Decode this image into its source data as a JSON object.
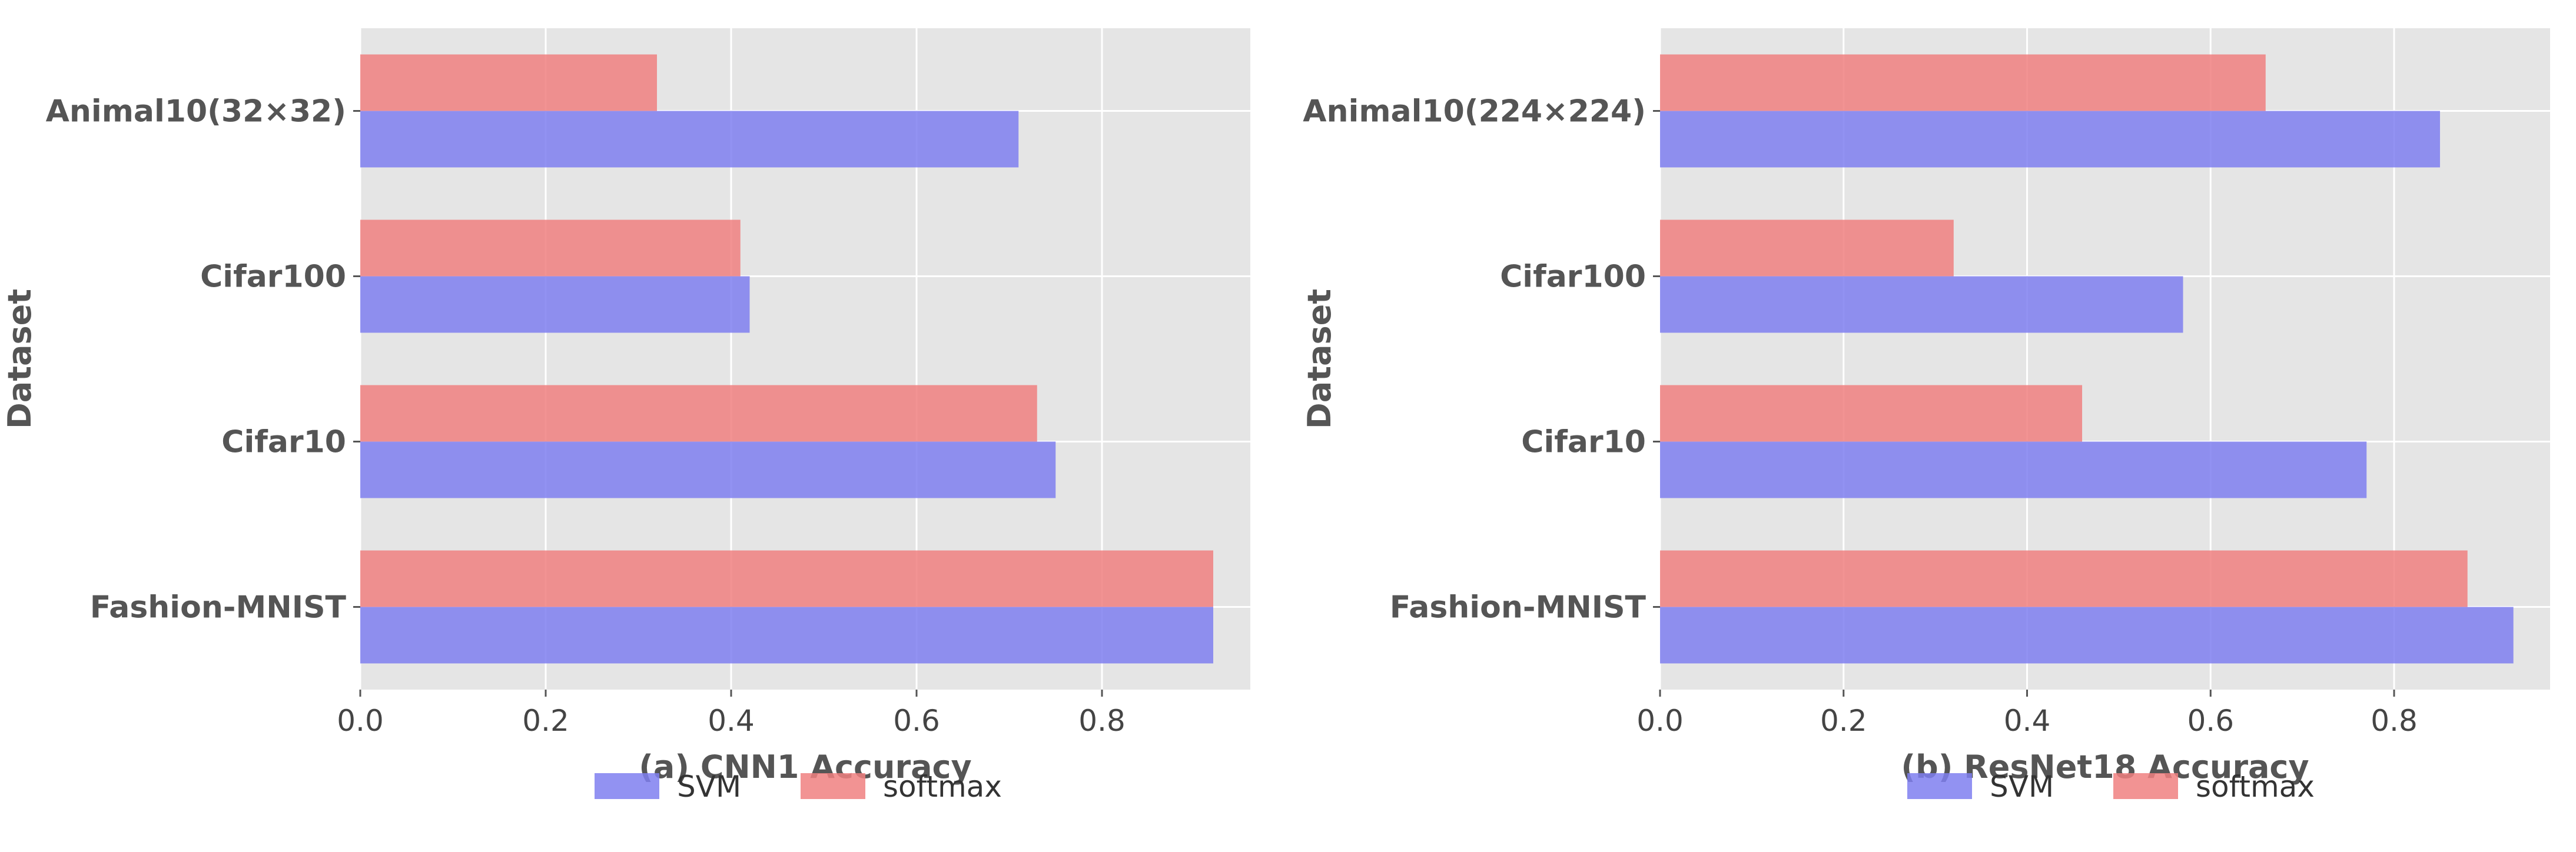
{
  "colors": {
    "svm": "#7f7ff0",
    "softmax": "#f08080",
    "background": "#e5e5e5"
  },
  "chart_data": [
    {
      "type": "bar",
      "orientation": "horizontal",
      "title": "",
      "xlabel": "(a) CNN1 Accuracy",
      "ylabel": "Dataset",
      "categories": [
        "Animal10(32×32)",
        "Cifar100",
        "Cifar10",
        "Fashion-MNIST"
      ],
      "xlim": [
        0,
        0.96
      ],
      "xticks": [
        "0.0",
        "0.2",
        "0.4",
        "0.6",
        "0.8"
      ],
      "grid": true,
      "legend": "bottom-center",
      "series": [
        {
          "name": "SVM",
          "values": [
            0.71,
            0.42,
            0.75,
            0.92
          ]
        },
        {
          "name": "softmax",
          "values": [
            0.32,
            0.41,
            0.73,
            0.92
          ]
        }
      ]
    },
    {
      "type": "bar",
      "orientation": "horizontal",
      "title": "",
      "xlabel": "(b) ResNet18 Accuracy",
      "ylabel": "Dataset",
      "categories": [
        "Animal10(224×224)",
        "Cifar100",
        "Cifar10",
        "Fashion-MNIST"
      ],
      "xlim": [
        0,
        0.97
      ],
      "xticks": [
        "0.0",
        "0.2",
        "0.4",
        "0.6",
        "0.8"
      ],
      "grid": true,
      "legend": "bottom-center",
      "series": [
        {
          "name": "SVM",
          "values": [
            0.85,
            0.57,
            0.77,
            0.93
          ]
        },
        {
          "name": "softmax",
          "values": [
            0.66,
            0.32,
            0.46,
            0.88
          ]
        }
      ]
    }
  ]
}
